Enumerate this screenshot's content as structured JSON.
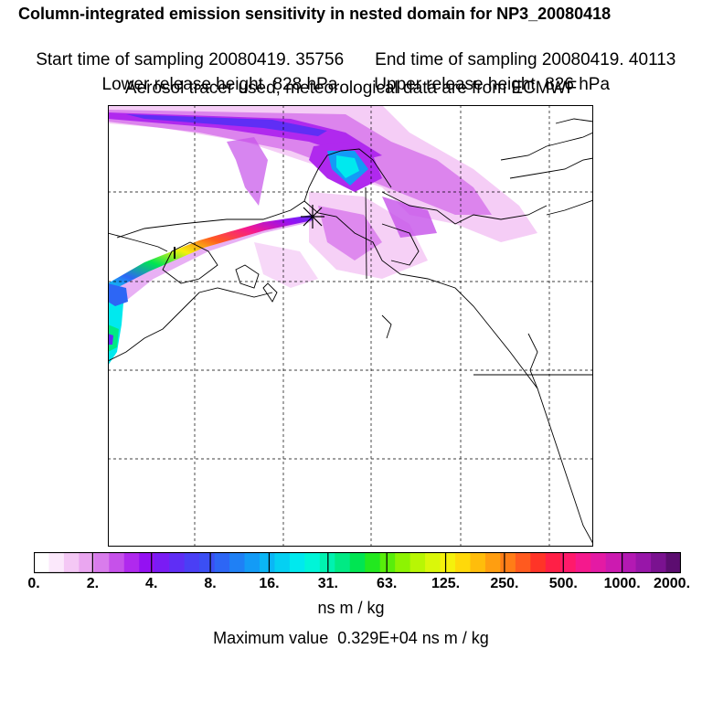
{
  "header": {
    "title": "Column-integrated emission sensitivity in nested domain for NP3_20080418",
    "start_label": "Start time of sampling 20080419. 35756",
    "end_label": "End time of sampling 20080419. 40113",
    "lower_label": "Lower release height  828 hPa",
    "upper_label": "Upper release height  826 hPa",
    "tracer_label": "Aerosol tracer used, meteorological data are from ECMWF"
  },
  "colorbar": {
    "ticks": [
      "0.",
      "2.",
      "4.",
      "8.",
      "16.",
      "31.",
      "63.",
      "125.",
      "250.",
      "500.",
      "1000.",
      "2000."
    ],
    "unit": "ns m / kg",
    "colors": [
      "#ffffff",
      "#fbe8fb",
      "#f4c8f5",
      "#eaa6f0",
      "#d97cec",
      "#c651ea",
      "#b029ee",
      "#9411f2",
      "#7a1cf4",
      "#5f2ef5",
      "#4a3ff5",
      "#3b4ff4",
      "#2d66f5",
      "#1f80f5",
      "#139bf6",
      "#0bb6f5",
      "#05d0f2",
      "#00e9ee",
      "#00f5d8",
      "#00f2b0",
      "#00ea84",
      "#00e552",
      "#22e81f",
      "#58ee0b",
      "#8df302",
      "#b8f604",
      "#daf70a",
      "#f5f10c",
      "#ffd90a",
      "#ffbd0b",
      "#ff9e10",
      "#ff7d17",
      "#ff5a1f",
      "#ff3427",
      "#ff1f46",
      "#ff1a6b",
      "#f5198d",
      "#e41aa4",
      "#cc1ab0",
      "#b319b3",
      "#9816a9",
      "#7a1290",
      "#5c0d70"
    ]
  },
  "footer": {
    "max_label": "Maximum value  0.329E+04 ns m / kg"
  }
}
